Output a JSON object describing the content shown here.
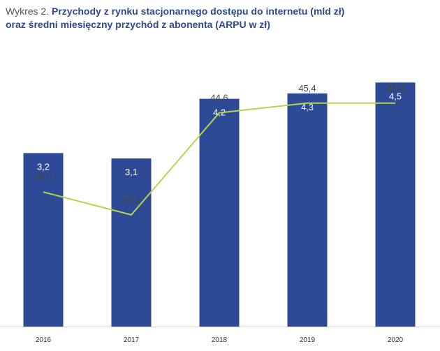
{
  "title": {
    "prefix": "Wykres 2.",
    "line1": "Przychody z rynku stacjonarnego dostępu do internetu (mld zł)",
    "line2": "oraz średni miesięczny przychód z abonenta (ARPU w zł)"
  },
  "colors": {
    "bar": "#2e4a97",
    "line": "#b9d44a",
    "title": "#2e4a8f"
  },
  "chart_data": {
    "type": "bar",
    "categories": [
      "2016",
      "2017",
      "2018",
      "2019",
      "2020"
    ],
    "series": [
      {
        "type": "bar",
        "values": [
          3.2,
          3.1,
          4.2,
          4.3,
          4.5
        ],
        "labels": [
          "3,2",
          "3,1",
          "4,2",
          "4,3",
          "4,5"
        ]
      },
      {
        "type": "line",
        "values": [
          38.0,
          36.1,
          44.6,
          45.4,
          45.4
        ],
        "labels": [
          "38,0",
          "36,1",
          "44,6",
          "45,4",
          "45,4"
        ]
      }
    ],
    "bar_axis_range": [
      0,
      5.25
    ],
    "line_axis_range": [
      26.8,
      50.5
    ],
    "grid": false,
    "legend": "none"
  }
}
